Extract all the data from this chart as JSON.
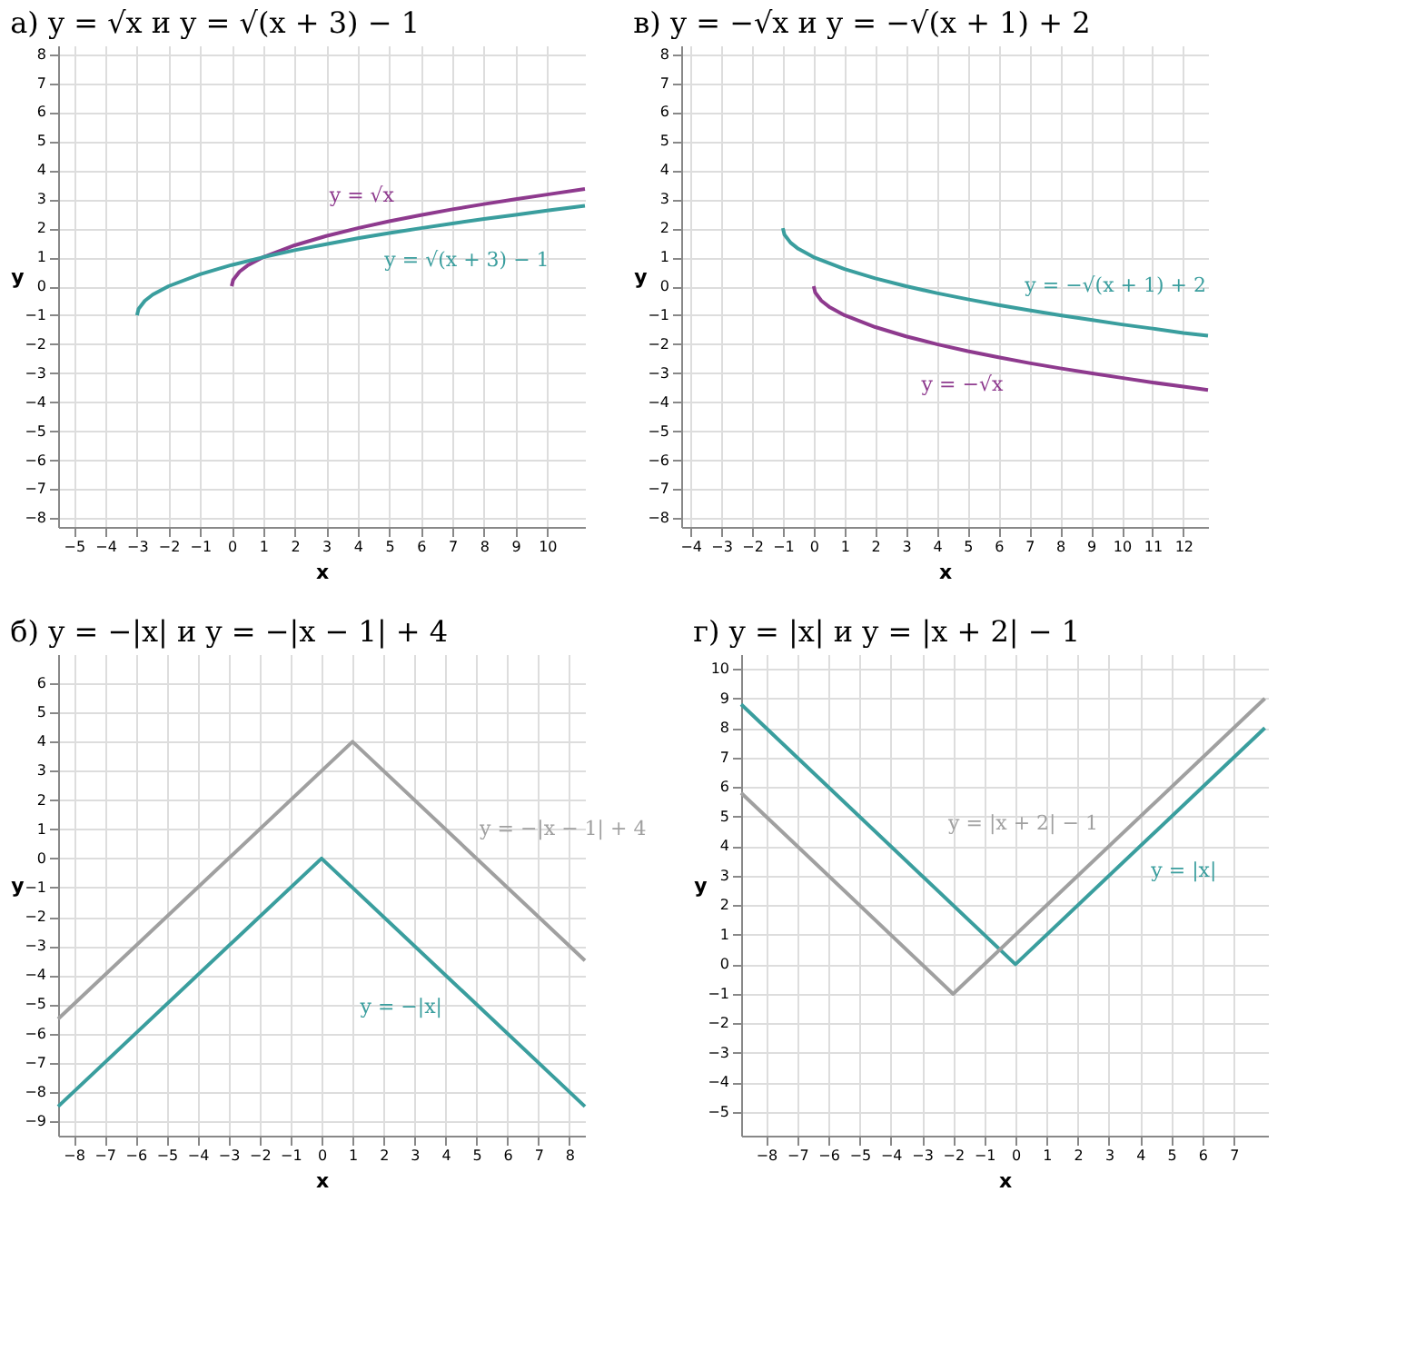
{
  "chart_data": [
    {
      "type": "line",
      "title": "а) y = √x   и   y = √(x + 3) − 1",
      "xlabel": "x",
      "ylabel": "y",
      "xlim": [
        -5.5,
        11.2
      ],
      "xticks": [
        -5,
        -4,
        -3,
        -2,
        -1,
        0,
        1,
        2,
        3,
        4,
        5,
        6,
        7,
        8,
        9,
        10
      ],
      "ylim": [
        -8.3,
        8.3
      ],
      "yticks": [
        -8,
        -7,
        -6,
        -5,
        -4,
        -3,
        -2,
        -1,
        0,
        1,
        2,
        3,
        4,
        5,
        6,
        7,
        8
      ],
      "grid": true,
      "marker": "none",
      "line_style": "solid",
      "series": [
        {
          "name": "y = √x",
          "color": "#8e3a8e",
          "x": [
            0,
            0.05,
            0.25,
            0.5,
            1,
            2,
            3,
            4,
            5,
            6,
            7,
            8,
            9,
            10,
            11.2
          ],
          "values": [
            0,
            0.22,
            0.5,
            0.71,
            1,
            1.41,
            1.73,
            2,
            2.24,
            2.45,
            2.65,
            2.83,
            3,
            3.16,
            3.35
          ]
        },
        {
          "name": "y = √(x + 3) − 1",
          "color": "#3a9e9e",
          "x": [
            -3,
            -2.95,
            -2.75,
            -2.5,
            -2,
            -1,
            0,
            1,
            2,
            3,
            4,
            5,
            6,
            7,
            8,
            9,
            10,
            11.2
          ],
          "values": [
            -1,
            -0.78,
            -0.5,
            -0.29,
            0,
            0.41,
            0.73,
            1,
            1.24,
            1.45,
            1.65,
            1.83,
            2,
            2.16,
            2.32,
            2.46,
            2.61,
            2.77
          ]
        }
      ]
    },
    {
      "type": "line",
      "title": "в) y = −√x   и   y = −√(x + 1) + 2",
      "xlabel": "x",
      "ylabel": "y",
      "xlim": [
        -4.3,
        12.8
      ],
      "xticks": [
        -4,
        -3,
        -2,
        -1,
        0,
        1,
        2,
        3,
        4,
        5,
        6,
        7,
        8,
        9,
        10,
        11,
        12
      ],
      "ylim": [
        -8.3,
        8.3
      ],
      "yticks": [
        -8,
        -7,
        -6,
        -5,
        -4,
        -3,
        -2,
        -1,
        0,
        1,
        2,
        3,
        4,
        5,
        6,
        7,
        8
      ],
      "grid": true,
      "marker": "none",
      "line_style": "solid",
      "series": [
        {
          "name": "y = −√x",
          "color": "#8e3a8e",
          "x": [
            0,
            0.05,
            0.25,
            0.5,
            1,
            2,
            3,
            4,
            5,
            6,
            7,
            8,
            9,
            10,
            11,
            12,
            12.8
          ],
          "values": [
            0,
            -0.22,
            -0.5,
            -0.71,
            -1,
            -1.41,
            -1.73,
            -2,
            -2.24,
            -2.45,
            -2.65,
            -2.83,
            -3,
            -3.16,
            -3.32,
            -3.46,
            -3.58
          ]
        },
        {
          "name": "y = −√(x + 1) + 2",
          "color": "#3a9e9e",
          "x": [
            -1,
            -0.95,
            -0.75,
            -0.5,
            0,
            1,
            2,
            3,
            4,
            5,
            6,
            7,
            8,
            9,
            10,
            11,
            12,
            12.8
          ],
          "values": [
            2,
            1.78,
            1.5,
            1.29,
            1,
            0.59,
            0.27,
            0,
            -0.24,
            -0.45,
            -0.65,
            -0.83,
            -1,
            -1.16,
            -1.32,
            -1.46,
            -1.61,
            -1.71
          ]
        }
      ]
    },
    {
      "type": "line",
      "title": "б) y = −|x|   и   y = −|x − 1| + 4",
      "xlabel": "x",
      "ylabel": "y",
      "xlim": [
        -8.5,
        8.5
      ],
      "xticks": [
        -8,
        -7,
        -6,
        -5,
        -4,
        -3,
        -2,
        -1,
        0,
        1,
        2,
        3,
        4,
        5,
        6,
        7,
        8
      ],
      "ylim": [
        -9.5,
        7
      ],
      "yticks": [
        -9,
        -8,
        -7,
        -6,
        -5,
        -4,
        -3,
        -2,
        -1,
        0,
        1,
        2,
        3,
        4,
        5,
        6
      ],
      "grid": true,
      "marker": "none",
      "line_style": "solid",
      "series": [
        {
          "name": "y = −|x|",
          "color": "#3a9e9e",
          "x": [
            -8.5,
            0,
            8.5
          ],
          "values": [
            -8.5,
            0,
            -8.5
          ]
        },
        {
          "name": "y = −|x − 1| + 4",
          "color": "#a0a0a0",
          "x": [
            -8.5,
            1,
            8.5
          ],
          "values": [
            -5.5,
            4,
            -3.5
          ]
        }
      ]
    },
    {
      "type": "line",
      "title": "г) y = |x|   и   y = |x + 2| − 1",
      "xlabel": "x",
      "ylabel": "y",
      "xlim": [
        -8.8,
        8.1
      ],
      "xticks": [
        -8,
        -7,
        -6,
        -5,
        -4,
        -3,
        -2,
        -1,
        0,
        1,
        2,
        3,
        4,
        5,
        6,
        7
      ],
      "ylim": [
        -5.8,
        10.5
      ],
      "yticks": [
        -5,
        -4,
        -3,
        -2,
        -1,
        0,
        1,
        2,
        3,
        4,
        5,
        6,
        7,
        8,
        9,
        10
      ],
      "grid": true,
      "marker": "none",
      "line_style": "solid",
      "series": [
        {
          "name": "y = |x|",
          "color": "#3a9e9e",
          "x": [
            -8.8,
            0,
            8
          ],
          "values": [
            8.8,
            0,
            8
          ]
        },
        {
          "name": "y = |x + 2| − 1",
          "color": "#a0a0a0",
          "x": [
            -8.8,
            -2,
            8
          ],
          "values": [
            5.8,
            -1,
            9
          ]
        }
      ]
    }
  ]
}
